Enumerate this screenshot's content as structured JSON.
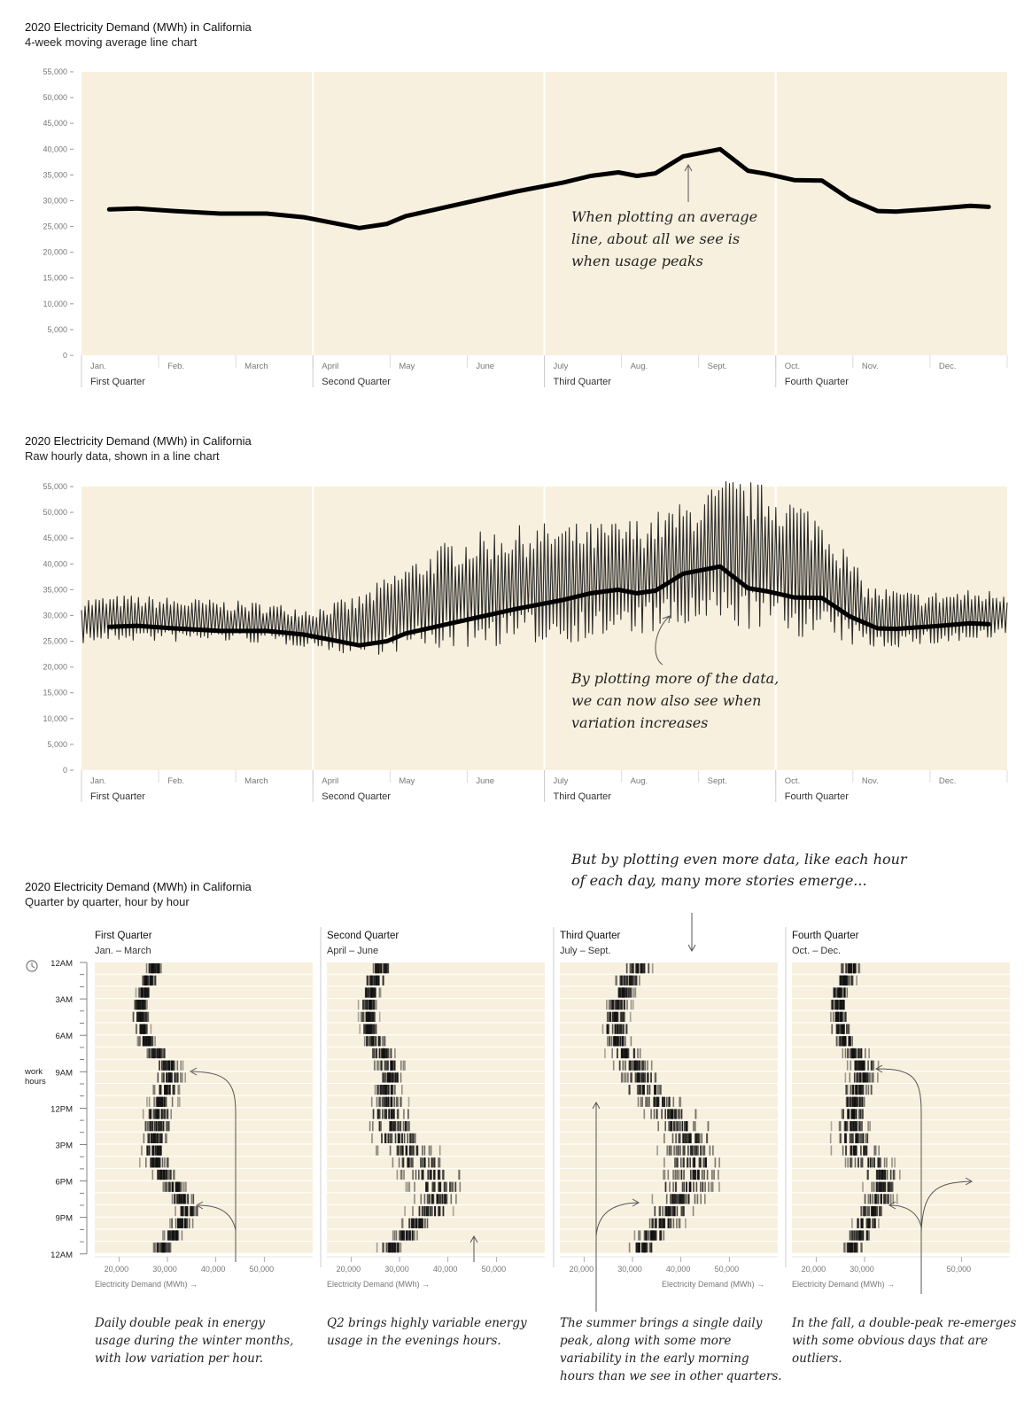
{
  "colors": {
    "panel": "#f8f0de",
    "ink": "#111111",
    "axis": "#888888"
  },
  "chart_data": [
    {
      "type": "line",
      "title": "2020 Electricity Demand (MWh) in California",
      "subtitle": "4-week moving average line chart",
      "ylim": [
        0,
        55000
      ],
      "yticks": [
        "55,000",
        "50,000",
        "45,000",
        "40,000",
        "35,000",
        "30,000",
        "25,000",
        "20,000",
        "15,000",
        "10,000",
        "5,000",
        "0"
      ],
      "months": [
        "Jan.",
        "Feb.",
        "March",
        "April",
        "May",
        "June",
        "July",
        "Aug.",
        "Sept.",
        "Oct.",
        "Nov.",
        "Dec."
      ],
      "quarters": [
        "First Quarter",
        "Second Quarter",
        "Third Quarter",
        "Fourth Quarter"
      ],
      "series": [
        {
          "x": [
            0.03,
            0.06,
            0.1,
            0.15,
            0.2,
            0.24,
            0.28,
            0.3,
            0.33,
            0.35,
            0.38,
            0.42,
            0.47,
            0.52,
            0.55,
            0.58,
            0.6,
            0.62,
            0.65,
            0.69,
            0.72,
            0.74,
            0.77,
            0.8,
            0.83,
            0.86,
            0.88,
            0.92,
            0.96,
            0.98
          ],
          "y": [
            28300,
            28500,
            28000,
            27500,
            27500,
            26800,
            25400,
            24700,
            25500,
            27000,
            28200,
            29800,
            31800,
            33500,
            34800,
            35500,
            34800,
            35300,
            38600,
            40000,
            35800,
            35200,
            34000,
            33900,
            30300,
            28000,
            27900,
            28400,
            29000,
            28800
          ]
        }
      ],
      "annotation": [
        "When plotting an average",
        "line, about all we see is",
        "when usage peaks"
      ]
    },
    {
      "type": "line",
      "title": "2020 Electricity Demand (MWh) in California",
      "subtitle": "Raw hourly data, shown in a line chart",
      "ylim": [
        0,
        55000
      ],
      "yticks": [
        "55,000",
        "50,000",
        "45,000",
        "40,000",
        "35,000",
        "30,000",
        "25,000",
        "20,000",
        "15,000",
        "10,000",
        "5,000",
        "0"
      ],
      "months": [
        "Jan.",
        "Feb.",
        "March",
        "April",
        "May",
        "June",
        "July",
        "Aug.",
        "Sept.",
        "Oct.",
        "Nov.",
        "Dec."
      ],
      "quarters": [
        "First Quarter",
        "Second Quarter",
        "Third Quarter",
        "Fourth Quarter"
      ],
      "series": [
        {
          "name": "hourly",
          "x": [
            0,
            0.05,
            0.1,
            0.15,
            0.2,
            0.25,
            0.3,
            0.35,
            0.4,
            0.45,
            0.5,
            0.55,
            0.6,
            0.65,
            0.7,
            0.75,
            0.8,
            0.85,
            0.9,
            0.95,
            1.0
          ],
          "ymin": [
            24500,
            25000,
            24800,
            25000,
            24500,
            23800,
            22000,
            23000,
            23500,
            24000,
            24500,
            25000,
            26000,
            27000,
            27500,
            26500,
            25000,
            23500,
            24000,
            24500,
            25000
          ],
          "ymax": [
            33500,
            34000,
            33500,
            33000,
            32500,
            31500,
            34000,
            40000,
            45000,
            47000,
            48000,
            48000,
            49000,
            52000,
            57000,
            55000,
            50000,
            36000,
            34500,
            35000,
            35000
          ]
        },
        {
          "name": "average",
          "x": [
            0.03,
            0.06,
            0.1,
            0.15,
            0.2,
            0.24,
            0.28,
            0.3,
            0.33,
            0.35,
            0.38,
            0.42,
            0.47,
            0.52,
            0.55,
            0.58,
            0.6,
            0.62,
            0.65,
            0.69,
            0.72,
            0.74,
            0.77,
            0.8,
            0.83,
            0.86,
            0.88,
            0.92,
            0.96,
            0.98
          ],
          "y": [
            27800,
            28000,
            27500,
            27000,
            27000,
            26300,
            24900,
            24200,
            25000,
            26500,
            27700,
            29300,
            31300,
            33000,
            34300,
            35000,
            34300,
            34800,
            38100,
            39500,
            35300,
            34700,
            33500,
            33400,
            29800,
            27500,
            27400,
            27900,
            28500,
            28300
          ]
        }
      ],
      "annotation": [
        "By plotting more of the data,",
        "we can now also see when",
        "variation increases"
      ]
    },
    {
      "type": "heatmap",
      "title": "2020 Electricity Demand (MWh) in California",
      "subtitle": "Quarter by quarter, hour by hour",
      "intro": [
        "But by plotting even more data, like each hour",
        "of each day, many more stories emerge..."
      ],
      "hour_labels": [
        "12AM",
        "3AM",
        "6AM",
        "9AM",
        "12PM",
        "3PM",
        "6PM",
        "9PM",
        "12AM"
      ],
      "work_label": [
        "work",
        "hours"
      ],
      "xlabel": "Electricity Demand (MWh) →",
      "panels": [
        {
          "title": "First Quarter",
          "range": "Jan. – March",
          "xticks": [
            "20,000",
            "30,000",
            "40,000",
            "50,000"
          ],
          "xtickvals": [
            20000,
            30000,
            40000,
            50000
          ],
          "center": [
            27000,
            26000,
            25000,
            24500,
            24500,
            24800,
            25500,
            27500,
            30000,
            30500,
            29500,
            29000,
            28000,
            27500,
            27000,
            27000,
            27500,
            29000,
            31500,
            33000,
            34000,
            33000,
            31000,
            28500
          ],
          "spread": [
            2500,
            2500,
            2000,
            2000,
            2000,
            2000,
            2500,
            3000,
            4000,
            4000,
            4000,
            4000,
            4000,
            4000,
            4000,
            4000,
            4000,
            3500,
            3500,
            3500,
            3500,
            3500,
            3000,
            3000
          ],
          "note": [
            "Daily double peak in energy",
            "usage during the winter months,",
            "with low variation per hour."
          ]
        },
        {
          "title": "Second Quarter",
          "range": "April – June",
          "xticks": [
            "20,000",
            "30,000",
            "40,000",
            "50,000"
          ],
          "xtickvals": [
            20000,
            30000,
            40000,
            50000
          ],
          "center": [
            26000,
            25000,
            24000,
            23500,
            23500,
            23800,
            24500,
            26500,
            28000,
            28000,
            27500,
            27500,
            27500,
            28000,
            29500,
            31500,
            34000,
            36000,
            37500,
            37500,
            36000,
            34000,
            31000,
            28000
          ],
          "spread": [
            3000,
            3000,
            2500,
            2500,
            2500,
            2500,
            3000,
            3500,
            4000,
            4000,
            4000,
            5000,
            6000,
            7000,
            8000,
            9000,
            9000,
            9000,
            8000,
            7000,
            6000,
            5000,
            4000,
            3500
          ],
          "note": [
            "Q2 brings highly variable energy",
            "usage in the evenings hours."
          ]
        },
        {
          "title": "Third Quarter",
          "range": "July – Sept.",
          "xticks": [
            "20,000",
            "30,000",
            "40,000",
            "50,000"
          ],
          "xtickvals": [
            20000,
            30000,
            40000,
            50000
          ],
          "center": [
            31000,
            29000,
            28000,
            27000,
            26500,
            26500,
            27000,
            28500,
            30000,
            31500,
            33000,
            35000,
            37000,
            39000,
            41000,
            42000,
            42500,
            42500,
            41500,
            40000,
            38000,
            36000,
            34000,
            32000
          ],
          "spread": [
            4000,
            4000,
            3500,
            3500,
            3500,
            3500,
            4000,
            5000,
            6000,
            6000,
            6000,
            7000,
            7500,
            8000,
            8500,
            9000,
            9000,
            9000,
            8500,
            8000,
            7000,
            6000,
            5000,
            4500
          ],
          "note": [
            "The summer brings a single daily",
            "peak, along with some more",
            "variability in the early morning",
            "hours than we see in other quarters."
          ]
        },
        {
          "title": "Fourth Quarter",
          "range": "Oct. – Dec.",
          "xticks": [
            "20,000",
            "30,000",
            "50,000"
          ],
          "xtickvals": [
            20000,
            30000,
            50000
          ],
          "center": [
            27000,
            26000,
            25000,
            24500,
            24500,
            25000,
            26000,
            28000,
            29500,
            29500,
            28500,
            28000,
            27500,
            27500,
            27500,
            28500,
            30500,
            32500,
            33500,
            33000,
            31500,
            30000,
            29000,
            27500
          ],
          "spread": [
            3000,
            3000,
            2500,
            2500,
            2500,
            2500,
            3000,
            4000,
            4500,
            4500,
            4500,
            4500,
            4500,
            5000,
            6000,
            7000,
            7000,
            6000,
            5000,
            4500,
            4000,
            3500,
            3500,
            3000
          ],
          "note": [
            "In the fall, a double-peak re-emerges",
            "with some obvious days that are",
            "outliers."
          ]
        }
      ]
    }
  ]
}
